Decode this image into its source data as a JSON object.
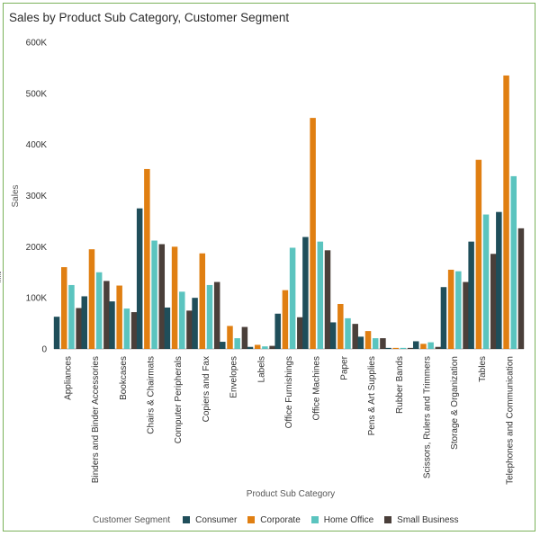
{
  "title": "Sales by Product Sub Category, Customer Segment",
  "legend": {
    "title": "Customer Segment",
    "items": [
      {
        "name": "Consumer",
        "color": "#1f4e5a"
      },
      {
        "name": "Corporate",
        "color": "#e07f12"
      },
      {
        "name": "Home Office",
        "color": "#5bc4bf"
      },
      {
        "name": "Small Business",
        "color": "#4a3f3a"
      }
    ]
  },
  "chart_data": {
    "type": "bar",
    "title": "Sales by Product Sub Category, Customer Segment",
    "xlabel": "Product Sub Category",
    "ylabel": "Sales",
    "ylim": [
      0,
      600000
    ],
    "yticks": [
      0,
      100000,
      200000,
      300000,
      400000,
      500000,
      600000
    ],
    "ytick_labels": [
      "0",
      "100K",
      "200K",
      "300K",
      "400K",
      "500K",
      "600K"
    ],
    "grid": false,
    "legend_position": "bottom",
    "categories": [
      "Appliances",
      "Binders and Binder Accessories",
      "Bookcases",
      "Chairs & Chairmats",
      "Computer Peripherals",
      "Copiers and Fax",
      "Envelopes",
      "Labels",
      "Office Furnishings",
      "Office Machines",
      "Paper",
      "Pens & Art Supplies",
      "Rubber Bands",
      "Scissors, Rulers and Trimmers",
      "Storage & Organization",
      "Tables",
      "Telephones and Communication"
    ],
    "series": [
      {
        "name": "Consumer",
        "color": "#1f4e5a",
        "values": [
          63000,
          103000,
          93000,
          275000,
          81000,
          100000,
          14000,
          4000,
          69000,
          219000,
          52000,
          24000,
          2000,
          15000,
          121000,
          210000,
          268000
        ]
      },
      {
        "name": "Corporate",
        "color": "#e07f12",
        "values": [
          160000,
          195000,
          124000,
          352000,
          200000,
          187000,
          45000,
          8000,
          115000,
          452000,
          88000,
          35000,
          2000,
          10000,
          155000,
          370000,
          535000
        ]
      },
      {
        "name": "Home Office",
        "color": "#5bc4bf",
        "values": [
          125000,
          150000,
          79000,
          212000,
          112000,
          125000,
          21000,
          5000,
          198000,
          210000,
          60000,
          21000,
          2000,
          13000,
          152000,
          263000,
          338000
        ]
      },
      {
        "name": "Small Business",
        "color": "#4a3f3a",
        "values": [
          80000,
          133000,
          72000,
          205000,
          75000,
          131000,
          43000,
          6000,
          62000,
          193000,
          49000,
          21000,
          2000,
          4000,
          131000,
          186000,
          236000
        ]
      }
    ]
  }
}
